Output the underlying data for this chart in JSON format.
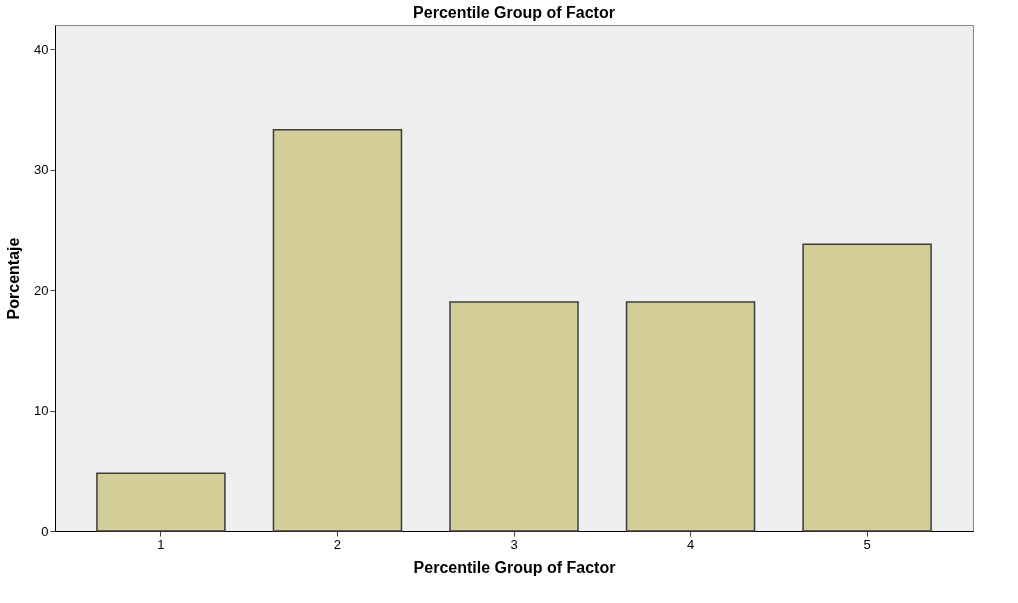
{
  "chart_data": {
    "type": "bar",
    "title": "Percentile Group of Factor",
    "xlabel": "Percentile Group of Factor",
    "ylabel": "Porcentaje",
    "categories": [
      "1",
      "2",
      "3",
      "4",
      "5"
    ],
    "values": [
      4.8,
      33.3,
      19,
      19,
      23.8
    ],
    "color": "#d3ce97",
    "ylim": [
      0,
      42
    ],
    "yticks": [
      0,
      10,
      20,
      30,
      40
    ],
    "grid": false
  }
}
